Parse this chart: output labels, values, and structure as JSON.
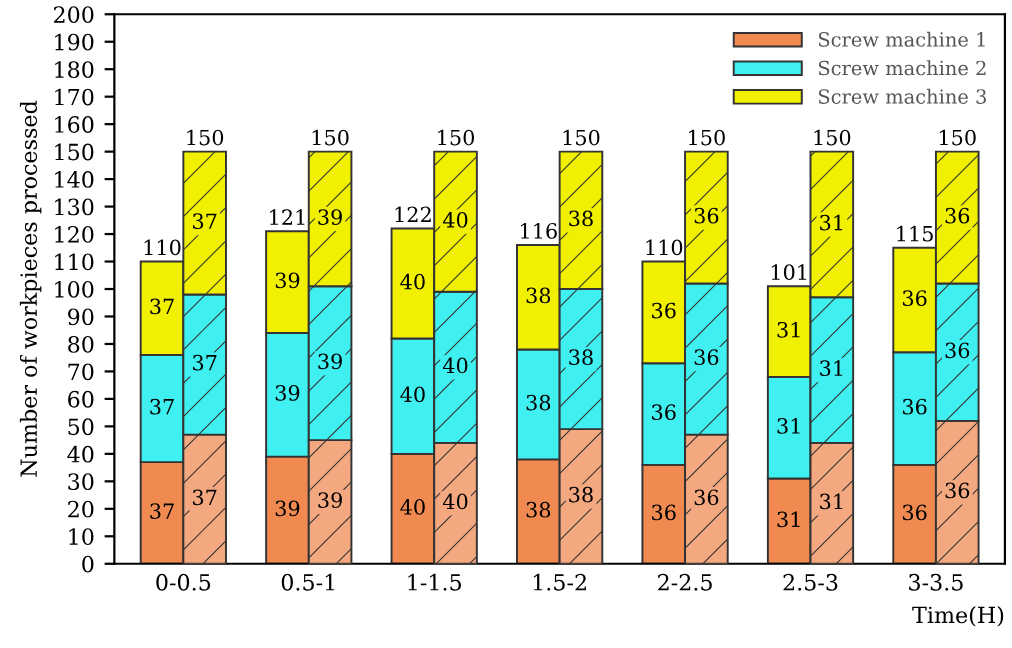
{
  "chart_data": [
    {
      "type": "bar",
      "stacked": true,
      "xlabel": "Time(H)",
      "ylabel": "Number of workpieces processed",
      "categories": [
        "0-0.5",
        "0.5-1",
        "1-1.5",
        "1.5-2",
        "2-2.5",
        "2.5-3",
        "3-3.5"
      ],
      "series": [
        {
          "name": "Screw machine 1",
          "color": "#f08a50",
          "values": [
            37,
            39,
            40,
            38,
            36,
            31,
            36
          ]
        },
        {
          "name": "Screw machine 2",
          "color": "#40f0f0",
          "values": [
            39,
            45,
            42,
            40,
            37,
            37,
            41
          ]
        },
        {
          "name": "Screw machine 3",
          "color": "#f0f000",
          "values": [
            34,
            37,
            40,
            38,
            37,
            33,
            38
          ]
        }
      ],
      "totals": [
        "110",
        "121",
        "122",
        "116",
        "110",
        "101",
        "115"
      ],
      "annotations": [
        {
          "text": "37",
          "x": "0-0.5",
          "y": 18.5
        },
        {
          "text": "39",
          "x": "0.5-1",
          "y": 19.5
        },
        {
          "text": "40",
          "x": "1-1.5",
          "y": 20
        },
        {
          "text": "38",
          "x": "1.5-2",
          "y": 19
        },
        {
          "text": "36",
          "x": "2-2.5",
          "y": 18
        },
        {
          "text": "31",
          "x": "2.5-3",
          "y": 15.5
        },
        {
          "text": "36",
          "x": "3-3.5",
          "y": 18
        },
        {
          "text": "37",
          "x": "0-0.5",
          "y": 56.5
        },
        {
          "text": "39",
          "x": "0.5-1",
          "y": 61.5
        },
        {
          "text": "40",
          "x": "1-1.5",
          "y": 61
        },
        {
          "text": "38",
          "x": "1.5-2",
          "y": 58
        },
        {
          "text": "36",
          "x": "2-2.5",
          "y": 54.5
        },
        {
          "text": "31",
          "x": "2.5-3",
          "y": 49.5
        },
        {
          "text": "36",
          "x": "3-3.5",
          "y": 56.5
        },
        {
          "text": "37",
          "x": "0-0.5",
          "y": 93
        },
        {
          "text": "39",
          "x": "0.5-1",
          "y": 102.5
        },
        {
          "text": "40",
          "x": "1-1.5",
          "y": 102
        },
        {
          "text": "38",
          "x": "1.5-2",
          "y": 97
        },
        {
          "text": "36",
          "x": "2-2.5",
          "y": 91.5
        },
        {
          "text": "31",
          "x": "2.5-3",
          "y": 84.5
        },
        {
          "text": "36",
          "x": "3-3.5",
          "y": 96
        }
      ],
      "ylim": [
        0,
        200
      ],
      "yticks": [
        0,
        10,
        20,
        30,
        40,
        50,
        60,
        70,
        80,
        90,
        100,
        110,
        120,
        130,
        140,
        150,
        160,
        170,
        180,
        190,
        200
      ],
      "legend": "top right"
    },
    {
      "type": "bar",
      "stacked": true,
      "categories": [
        "0-0.5",
        "0.5-1",
        "1-1.5",
        "1.5-2",
        "2-2.5",
        "2.5-3",
        "3-3.5"
      ],
      "series": [
        {
          "color": "#f4a880",
          "values": [
            47,
            45,
            44,
            49,
            47,
            44,
            52
          ]
        },
        {
          "color": "#40f0f0",
          "values": [
            51,
            56,
            55,
            51,
            55,
            53,
            50
          ]
        },
        {
          "color": "#f0f000",
          "values": [
            52,
            49,
            51,
            50,
            48,
            53,
            48
          ]
        }
      ],
      "totals": [
        "150",
        "150",
        "150",
        "150",
        "150",
        "150",
        "150"
      ],
      "annotations": [
        {
          "text": "37",
          "x": "0-0.5",
          "y": 23.5
        },
        {
          "text": "39",
          "x": "0.5-1",
          "y": 22.5
        },
        {
          "text": "40",
          "x": "1-1.5",
          "y": 22
        },
        {
          "text": "38",
          "x": "1.5-2",
          "y": 24.5
        },
        {
          "text": "36",
          "x": "2-2.5",
          "y": 23.5
        },
        {
          "text": "31",
          "x": "2.5-3",
          "y": 22
        },
        {
          "text": "36",
          "x": "3-3.5",
          "y": 26
        },
        {
          "text": "37",
          "x": "0-0.5",
          "y": 72.5
        },
        {
          "text": "39",
          "x": "0.5-1",
          "y": 73
        },
        {
          "text": "40",
          "x": "1-1.5",
          "y": 71.5
        },
        {
          "text": "38",
          "x": "1.5-2",
          "y": 74.5
        },
        {
          "text": "36",
          "x": "2-2.5",
          "y": 74.5
        },
        {
          "text": "31",
          "x": "2.5-3",
          "y": 70.5
        },
        {
          "text": "36",
          "x": "3-3.5",
          "y": 77
        },
        {
          "text": "37",
          "x": "0-0.5",
          "y": 124
        },
        {
          "text": "39",
          "x": "0.5-1",
          "y": 125.5
        },
        {
          "text": "40",
          "x": "1-1.5",
          "y": 124.5
        },
        {
          "text": "38",
          "x": "1.5-2",
          "y": 125
        },
        {
          "text": "36",
          "x": "2-2.5",
          "y": 126
        },
        {
          "text": "31",
          "x": "2.5-3",
          "y": 123.5
        },
        {
          "text": "36",
          "x": "3-3.5",
          "y": 126
        }
      ],
      "ylim": [
        0,
        200
      ],
      "tick_labels": false
    }
  ]
}
